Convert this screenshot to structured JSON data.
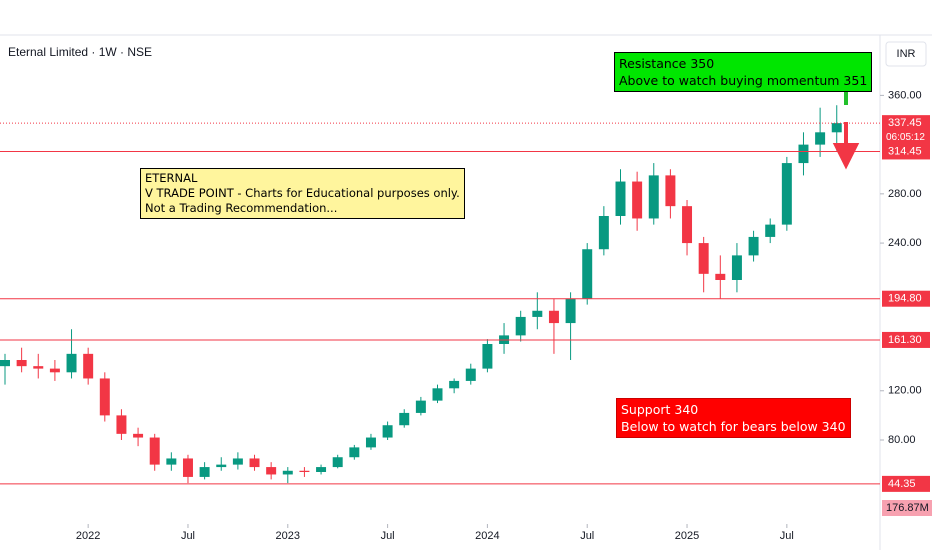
{
  "chart_data": {
    "type": "candlestick",
    "title": "Eternal Limited · 1W · NSE",
    "currency": "INR",
    "up_color": "#089981",
    "down_color": "#f23645",
    "x": [
      -5,
      -4,
      -3,
      -2,
      -1,
      0,
      1,
      2,
      3,
      4,
      5,
      6,
      7,
      8,
      9,
      10,
      11,
      12,
      13,
      14,
      15,
      16,
      17,
      18,
      19,
      20,
      21,
      22,
      23,
      24,
      25,
      26,
      27,
      28,
      29,
      30,
      31,
      32,
      33,
      34,
      35,
      36,
      37,
      38,
      39,
      40,
      41,
      42,
      43,
      44,
      45
    ],
    "open": [
      140,
      145,
      140,
      138,
      135,
      150,
      130,
      100,
      85,
      82,
      60,
      65,
      50,
      58,
      60,
      65,
      58,
      52,
      55,
      54,
      58,
      66,
      74,
      82,
      92,
      102,
      112,
      122,
      128,
      138,
      158,
      165,
      180,
      185,
      175,
      195,
      235,
      262,
      290,
      260,
      295,
      270,
      240,
      215,
      210,
      230,
      245,
      255,
      305,
      320,
      330
    ],
    "high": [
      150,
      155,
      150,
      145,
      170,
      155,
      135,
      105,
      90,
      85,
      70,
      68,
      62,
      66,
      70,
      68,
      62,
      58,
      58,
      60,
      68,
      76,
      85,
      95,
      105,
      115,
      125,
      130,
      142,
      162,
      175,
      185,
      200,
      195,
      200,
      240,
      270,
      300,
      298,
      305,
      300,
      275,
      245,
      230,
      240,
      250,
      260,
      310,
      330,
      350,
      352
    ],
    "low": [
      125,
      135,
      130,
      128,
      130,
      125,
      95,
      80,
      75,
      55,
      55,
      45,
      48,
      55,
      56,
      55,
      48,
      45,
      50,
      52,
      57,
      64,
      72,
      80,
      90,
      100,
      110,
      118,
      125,
      135,
      150,
      160,
      170,
      150,
      145,
      190,
      230,
      255,
      250,
      255,
      260,
      230,
      200,
      195,
      200,
      225,
      240,
      250,
      295,
      310,
      315
    ],
    "close": [
      145,
      140,
      138,
      135,
      150,
      130,
      100,
      85,
      82,
      60,
      65,
      50,
      58,
      60,
      65,
      58,
      52,
      55,
      54,
      58,
      66,
      74,
      82,
      92,
      102,
      112,
      122,
      128,
      138,
      158,
      165,
      180,
      185,
      175,
      195,
      235,
      262,
      290,
      260,
      295,
      270,
      240,
      215,
      210,
      230,
      245,
      255,
      305,
      320,
      330,
      337.45
    ],
    "xlim": [
      -5.3,
      47.6
    ],
    "xticks": [
      {
        "value": 0,
        "label": "2022"
      },
      {
        "value": 6,
        "label": "Jul"
      },
      {
        "value": 12,
        "label": "2023"
      },
      {
        "value": 18,
        "label": "Jul"
      },
      {
        "value": 24,
        "label": "2024"
      },
      {
        "value": 30,
        "label": "Jul"
      },
      {
        "value": 36,
        "label": "2025"
      },
      {
        "value": 42,
        "label": "Jul"
      }
    ],
    "ylim": [
      15,
      405
    ],
    "yticks": [
      {
        "value": 80,
        "label": "80.00"
      },
      {
        "value": 120,
        "label": "120.00"
      },
      {
        "value": 240,
        "label": "240.00"
      },
      {
        "value": 280,
        "label": "280.00"
      },
      {
        "value": 360,
        "label": "360.00"
      }
    ],
    "levels": [
      {
        "value": 314.45,
        "label": "314.45"
      },
      {
        "value": 194.8,
        "label": "194.80"
      },
      {
        "value": 161.3,
        "label": "161.30"
      },
      {
        "value": 44.35,
        "label": "44.35"
      }
    ],
    "last_price": {
      "value": 337.45,
      "label": "337.45"
    },
    "countdown": "06:05:12",
    "volume_label": "176.87M",
    "notes": {
      "disclaimer": [
        "ETERNAL",
        "V TRADE POINT - Charts for Educational purposes only.",
        "Not a Trading Recommendation..."
      ],
      "resistance": [
        "Resistance  350",
        "Above to watch buying momentum 351"
      ],
      "support": [
        "Support 340",
        "Below to watch for bears below 340"
      ]
    }
  }
}
